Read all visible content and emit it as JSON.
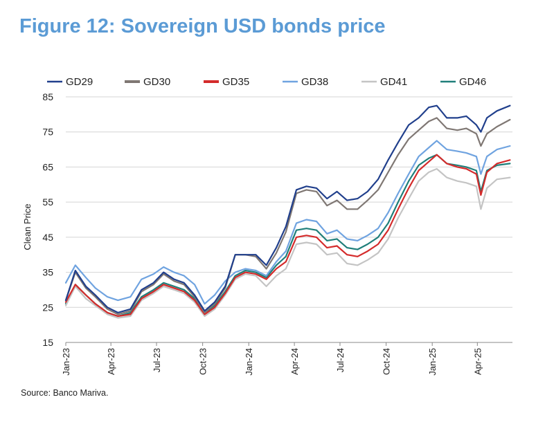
{
  "title": "Figure 12: Sovereign USD bonds price",
  "source": "Source: Banco Mariva.",
  "colors": {
    "title": "#5b9bd5",
    "grid": "#d4d4d4"
  },
  "chart_data": {
    "type": "line",
    "title": "Figure 12: Sovereign USD bonds price",
    "ylabel": "Clean Price",
    "xlabel": "",
    "ylim": [
      15,
      85
    ],
    "yticks": [
      15,
      25,
      35,
      45,
      55,
      65,
      75,
      85
    ],
    "xlim": [
      "2023-01-01",
      "2025-06-10"
    ],
    "xticks": [
      {
        "date": "2023-01-01",
        "label": "Jan-23"
      },
      {
        "date": "2023-04-01",
        "label": "Apr-23"
      },
      {
        "date": "2023-07-01",
        "label": "Jul-23"
      },
      {
        "date": "2023-10-01",
        "label": "Oct-23"
      },
      {
        "date": "2024-01-01",
        "label": "Jan-24"
      },
      {
        "date": "2024-04-01",
        "label": "Apr-24"
      },
      {
        "date": "2024-07-01",
        "label": "Jul-24"
      },
      {
        "date": "2024-10-01",
        "label": "Oct-24"
      },
      {
        "date": "2025-01-01",
        "label": "Jan-25"
      },
      {
        "date": "2025-04-01",
        "label": "Apr-25"
      }
    ],
    "grid": true,
    "legend_position": "top",
    "x": [
      "2023-01-01",
      "2023-01-20",
      "2023-02-10",
      "2023-03-01",
      "2023-03-25",
      "2023-04-15",
      "2023-05-10",
      "2023-06-01",
      "2023-06-25",
      "2023-07-15",
      "2023-08-05",
      "2023-08-25",
      "2023-09-15",
      "2023-10-05",
      "2023-10-25",
      "2023-11-15",
      "2023-12-05",
      "2023-12-25",
      "2024-01-15",
      "2024-02-05",
      "2024-02-25",
      "2024-03-15",
      "2024-04-05",
      "2024-04-25",
      "2024-05-15",
      "2024-06-05",
      "2024-06-25",
      "2024-07-15",
      "2024-08-05",
      "2024-08-25",
      "2024-09-15",
      "2024-10-05",
      "2024-10-25",
      "2024-11-15",
      "2024-12-05",
      "2024-12-25",
      "2025-01-10",
      "2025-01-30",
      "2025-02-20",
      "2025-03-10",
      "2025-03-30",
      "2025-04-08",
      "2025-04-20",
      "2025-05-10",
      "2025-06-05"
    ],
    "series": [
      {
        "name": "GD29",
        "color": "#203f8c",
        "values": [
          27,
          35.5,
          31,
          28.5,
          25,
          23.5,
          24.5,
          30,
          32,
          35,
          33,
          32,
          28.5,
          24,
          26.5,
          31,
          40,
          40,
          40,
          37,
          42,
          48,
          58.5,
          59.5,
          59,
          56,
          58,
          55.5,
          56,
          58,
          61.5,
          67,
          72,
          77,
          79,
          82,
          82.5,
          79,
          79,
          79.5,
          77,
          75,
          79,
          81,
          82.5
        ]
      },
      {
        "name": "GD30",
        "color": "#7f7773",
        "values": [
          27,
          35,
          30.5,
          28,
          24.5,
          23,
          24,
          29.5,
          31.5,
          34.5,
          32.5,
          31.5,
          28,
          23.5,
          26,
          30.5,
          40,
          40,
          39.5,
          36,
          40.5,
          46.5,
          57.5,
          58.5,
          58,
          54,
          55.5,
          53,
          53,
          55.5,
          58.5,
          63.5,
          68.5,
          73,
          75.5,
          78,
          79,
          76,
          75.5,
          76,
          74.5,
          71,
          74.5,
          76.5,
          78.5
        ]
      },
      {
        "name": "GD35",
        "color": "#d42b2b",
        "values": [
          26.5,
          31.5,
          28.5,
          26,
          23.5,
          22.5,
          23,
          27.5,
          29.5,
          31.5,
          30.5,
          29.5,
          27,
          23,
          25,
          29,
          33.5,
          35,
          34.5,
          33,
          36,
          38,
          45,
          45.5,
          45,
          42,
          42.5,
          40,
          39.5,
          41,
          43,
          47,
          53,
          59,
          64,
          66.5,
          68.5,
          66,
          65,
          64.5,
          63,
          57,
          63.5,
          66,
          67
        ]
      },
      {
        "name": "GD38",
        "color": "#6fa3e0",
        "values": [
          32,
          37,
          33.5,
          30.5,
          28,
          27,
          28,
          33,
          34.5,
          36.5,
          35,
          34,
          31.5,
          26,
          28.5,
          32.5,
          35,
          36,
          35.5,
          34,
          38,
          41,
          49,
          50,
          49.5,
          46,
          47,
          44.5,
          44,
          45.5,
          47.5,
          52,
          57.5,
          63,
          68,
          70.5,
          72.5,
          70,
          69.5,
          69,
          68,
          63,
          68,
          70,
          71
        ]
      },
      {
        "name": "GD41",
        "color": "#c4c4c4",
        "values": [
          25.5,
          31,
          27.5,
          25.5,
          23,
          22,
          22.5,
          27,
          29,
          31,
          30,
          29,
          26.5,
          22.5,
          24.5,
          28.5,
          33,
          34.5,
          34,
          31,
          34,
          36,
          43,
          43.5,
          43,
          40,
          40.5,
          37.5,
          37,
          38.5,
          40.5,
          44.5,
          50.5,
          56,
          61,
          63.5,
          64.5,
          62,
          61,
          60.5,
          59.5,
          53,
          59,
          61.5,
          62
        ]
      },
      {
        "name": "GD46",
        "color": "#1f7f7a",
        "values": [
          26,
          31.5,
          28.5,
          26,
          23.5,
          22.5,
          23.5,
          28,
          30,
          32,
          31,
          30,
          27.5,
          23.5,
          25.5,
          29.5,
          34,
          35.5,
          35,
          33.5,
          37,
          39.5,
          47,
          47.5,
          47,
          44,
          44.5,
          42,
          41.5,
          43,
          45,
          49,
          55,
          61,
          65.5,
          67.5,
          68.5,
          66,
          65.5,
          65,
          64,
          58,
          64,
          65.5,
          66
        ]
      }
    ]
  }
}
